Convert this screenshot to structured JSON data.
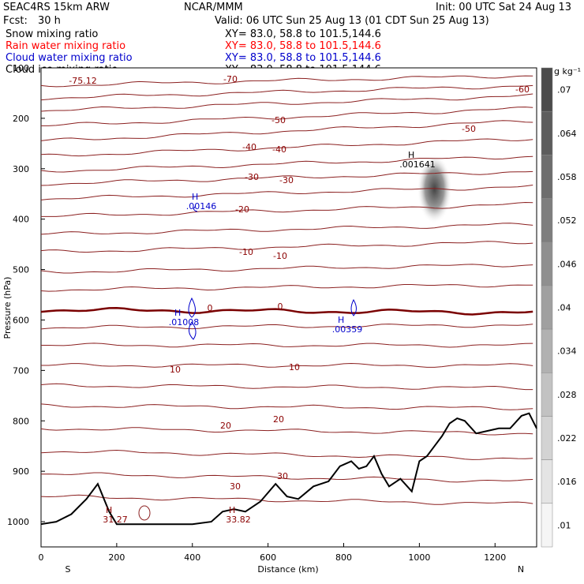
{
  "header": {
    "model": "SEAC4RS 15km ARW",
    "org": "NCAR/MMM",
    "init": "Init: 00 UTC Sat 24 Aug 13",
    "fcst_label": "Fcst:",
    "fcst_value": "30 h",
    "valid": "Valid: 06 UTC Sun 25 Aug 13 (01 CDT Sun 25 Aug 13)"
  },
  "fields": [
    {
      "name": "Snow mixing ratio",
      "xy": "XY=  83.0, 58.8 to 101.5,144.6",
      "color": "#000000"
    },
    {
      "name": "Rain water mixing ratio",
      "xy": "XY=  83.0, 58.8 to 101.5,144.6",
      "color": "#ff0000"
    },
    {
      "name": "Cloud water mixing ratio",
      "xy": "XY=  83.0, 58.8 to 101.5,144.6",
      "color": "#0000cc"
    },
    {
      "name": "Cloud ice mixing ratio",
      "xy": "XY=  83.0, 58.8 to 101.5,144.6",
      "color": "#000000"
    }
  ],
  "axes": {
    "x_ticks": [
      "0",
      "200",
      "400",
      "600",
      "800",
      "1000",
      "1200"
    ],
    "x_label": "Distance (km)",
    "x_left": "S",
    "x_right": "N",
    "y_ticks": [
      "100",
      "200",
      "300",
      "400",
      "500",
      "600",
      "700",
      "800",
      "900",
      "1000"
    ],
    "y_label": "Pressure (hPa)"
  },
  "colorbar": {
    "unit": "g kg⁻¹",
    "labels": [
      ".07",
      ".064",
      ".058",
      ".052",
      ".046",
      ".04",
      ".034",
      ".028",
      ".022",
      ".016",
      ".01"
    ]
  },
  "contour_labels": {
    "temps": [
      "-75.12",
      "-70",
      "-60",
      "-50",
      "-50",
      "-40",
      "-40",
      "-30",
      "-30",
      "-20",
      "-10",
      "-10",
      "0",
      "0",
      "10",
      "10",
      "20",
      "20",
      "30",
      "30"
    ],
    "extrema": [
      {
        "h": "H",
        "v": ".00146",
        "color": "#0000cc"
      },
      {
        "h": "H",
        "v": ".01008",
        "color": "#0000cc"
      },
      {
        "h": "H",
        "v": ".00359",
        "color": "#0000cc"
      },
      {
        "h": "H",
        "v": ".001641",
        "color": "#000000"
      },
      {
        "h": "H",
        "v": "31.27",
        "color": "#8b0000"
      },
      {
        "h": "H",
        "v": "33.82",
        "color": "#8b0000"
      }
    ]
  },
  "chart_data": {
    "type": "contour cross-section",
    "xlim": [
      0,
      1310
    ],
    "ylim": [
      1050,
      100
    ],
    "isotherm_levels": [
      -75,
      -70,
      -60,
      -50,
      -40,
      -30,
      -20,
      -10,
      0,
      10,
      20,
      30
    ],
    "freezing_level_hPa": 580,
    "terrain_pressure_hPa": [
      [
        0,
        1005
      ],
      [
        40,
        1000
      ],
      [
        80,
        985
      ],
      [
        120,
        955
      ],
      [
        150,
        925
      ],
      [
        180,
        980
      ],
      [
        200,
        1005
      ],
      [
        300,
        1005
      ],
      [
        400,
        1005
      ],
      [
        450,
        1000
      ],
      [
        480,
        980
      ],
      [
        510,
        975
      ],
      [
        540,
        980
      ],
      [
        580,
        960
      ],
      [
        620,
        925
      ],
      [
        650,
        950
      ],
      [
        680,
        955
      ],
      [
        720,
        930
      ],
      [
        760,
        920
      ],
      [
        790,
        890
      ],
      [
        820,
        880
      ],
      [
        840,
        895
      ],
      [
        860,
        890
      ],
      [
        880,
        870
      ],
      [
        900,
        905
      ],
      [
        920,
        930
      ],
      [
        950,
        915
      ],
      [
        980,
        940
      ],
      [
        1000,
        880
      ],
      [
        1020,
        870
      ],
      [
        1040,
        850
      ],
      [
        1060,
        830
      ],
      [
        1080,
        805
      ],
      [
        1100,
        795
      ],
      [
        1120,
        800
      ],
      [
        1150,
        825
      ],
      [
        1180,
        820
      ],
      [
        1210,
        815
      ],
      [
        1240,
        815
      ],
      [
        1270,
        790
      ],
      [
        1290,
        785
      ],
      [
        1310,
        815
      ]
    ],
    "snow_max": {
      "x_km": 1040,
      "p_hPa": 340,
      "value": 0.07
    }
  }
}
